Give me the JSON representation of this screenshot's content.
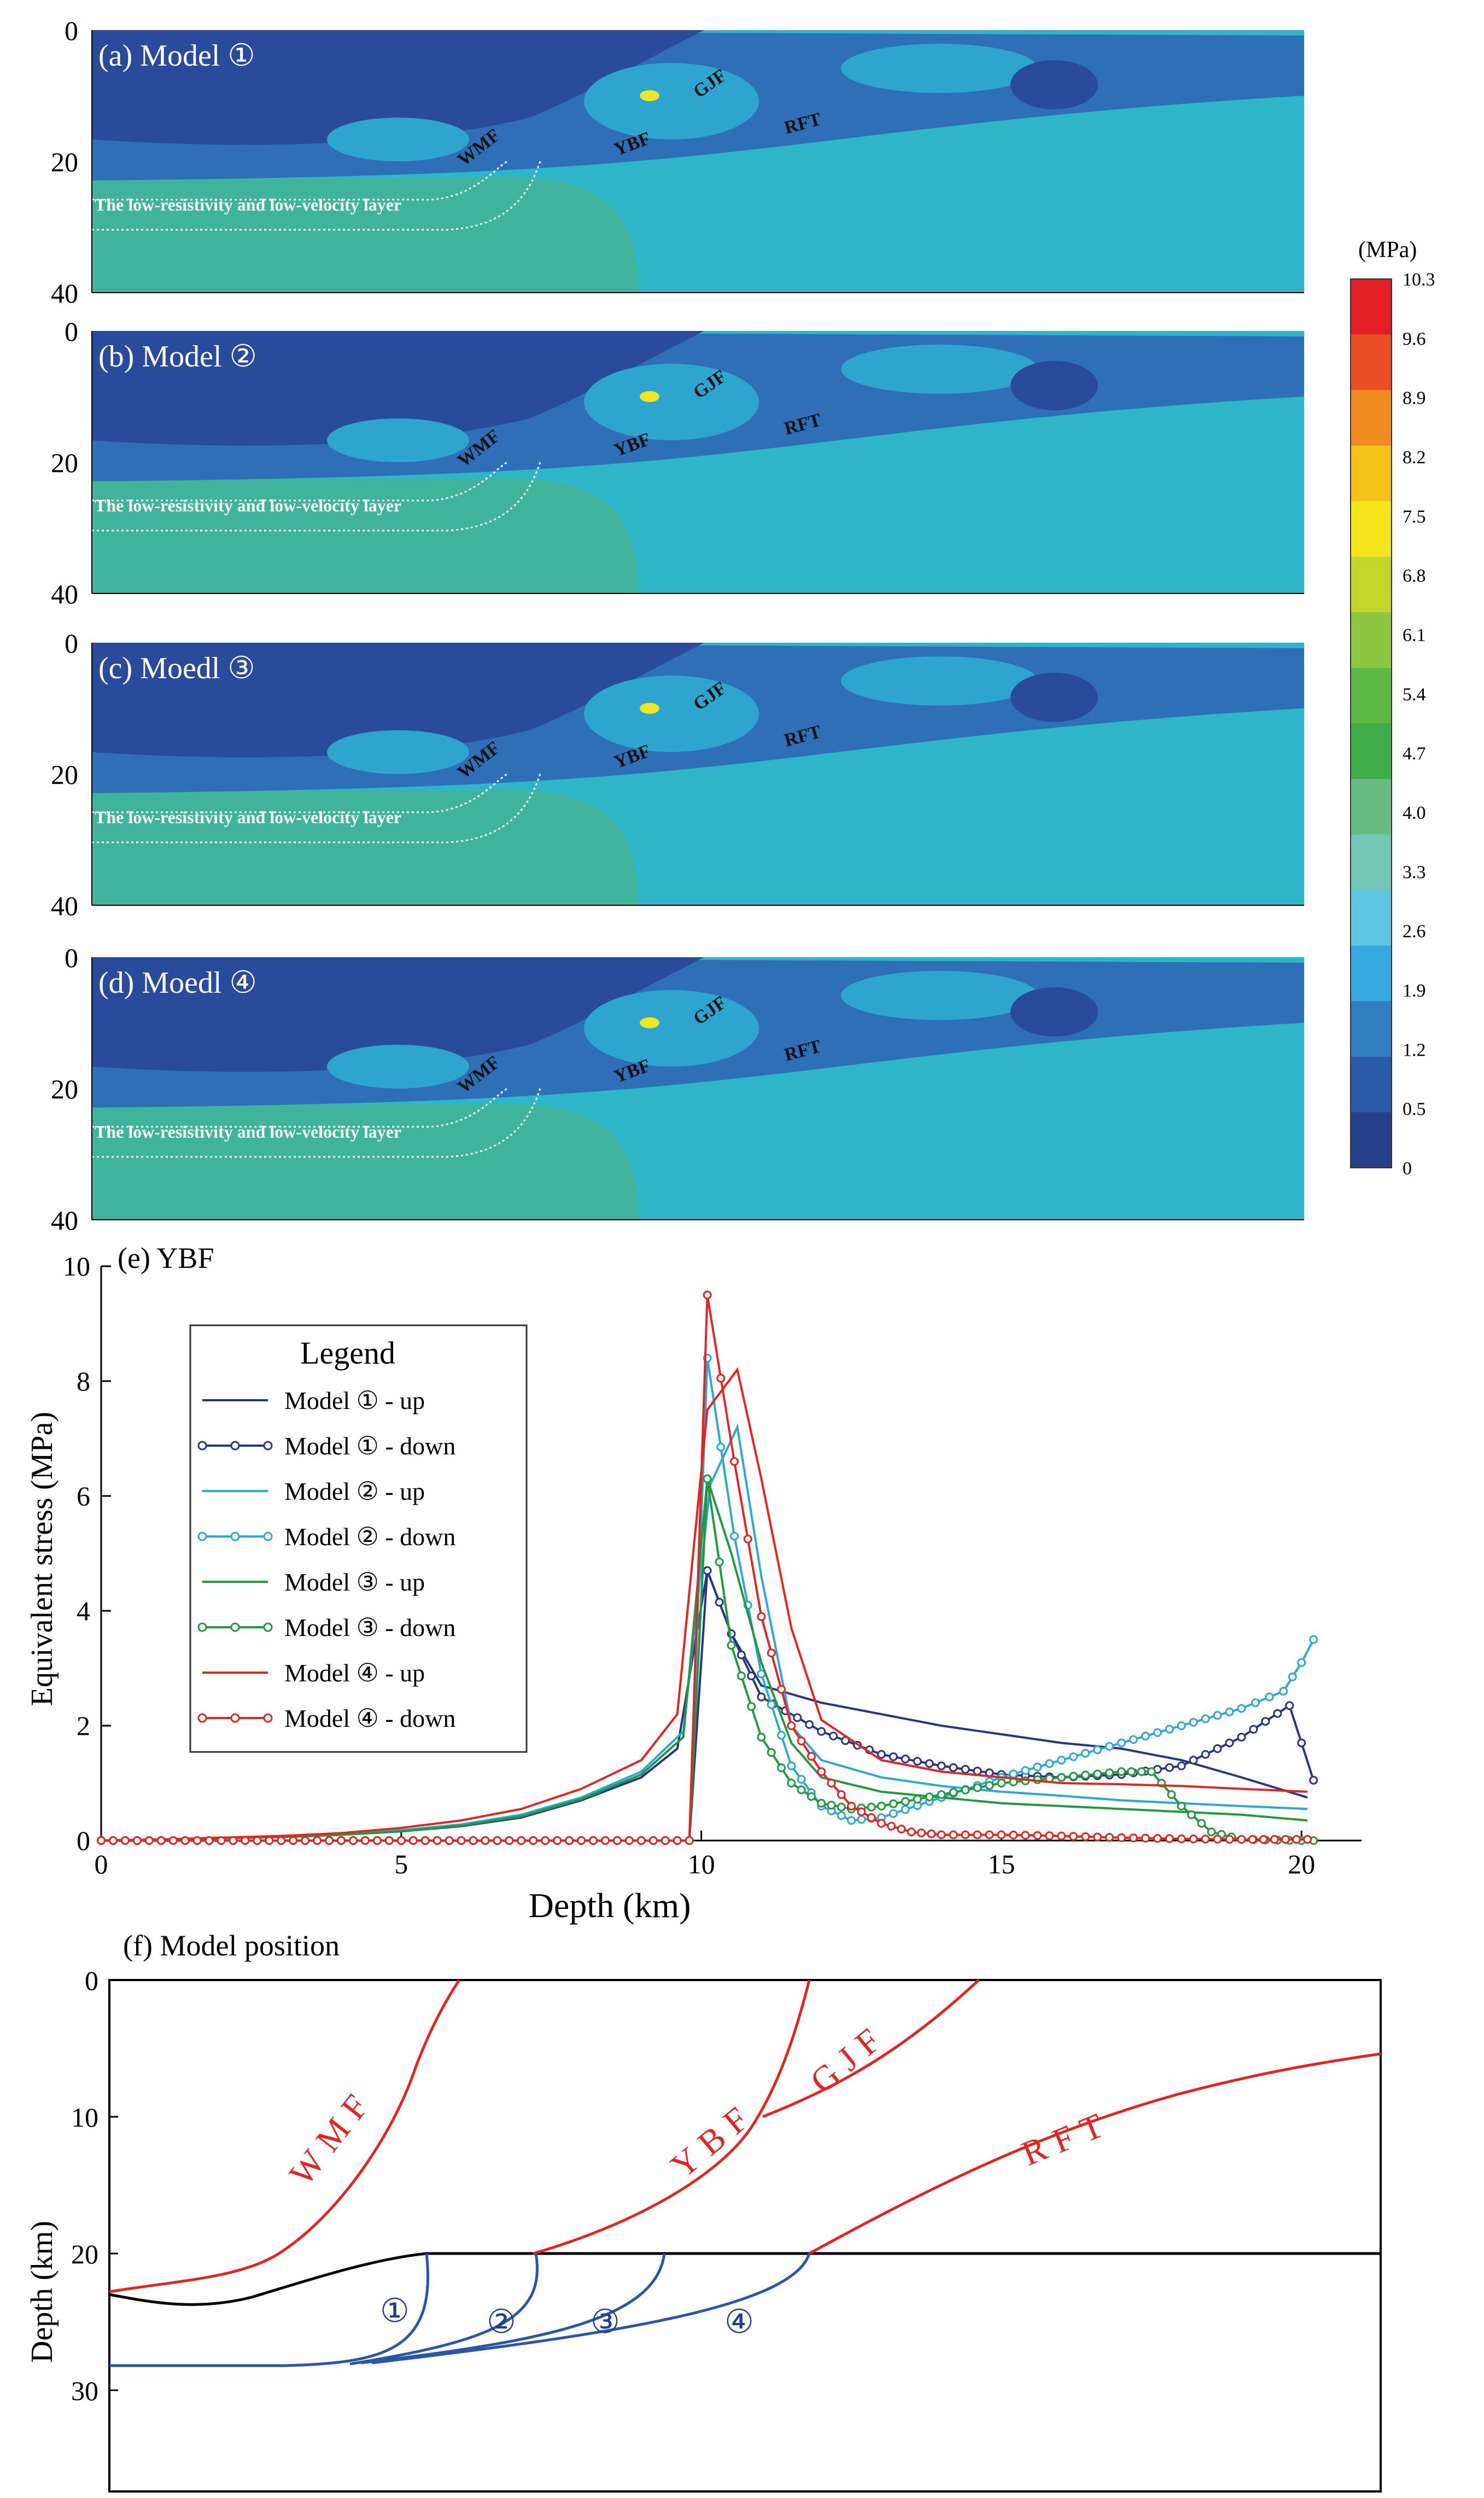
{
  "colors": {
    "dark_blue": "#2a4a9c",
    "mid_blue": "#2f6fb8",
    "light_blue": "#2ea5cf",
    "cyan": "#2fb5c8",
    "teal": "#3fb2a8",
    "green_teal": "#52b69a",
    "m1": "#27348b",
    "m2": "#2aa7de",
    "m3": "#1f9a3c",
    "m4": "#e52421",
    "red_line": "#e52421",
    "blue_line": "#2a55a8"
  },
  "panels": [
    {
      "label": "(a) Model ①",
      "fault_labels": {
        "wmf": "WMF",
        "ybf": "YBF",
        "gjf": "GJF",
        "rft": "RFT"
      },
      "layer_text": "The low-resistivity and low-velocity layer",
      "ticks": [
        "0",
        "20",
        "40"
      ]
    },
    {
      "label": "(b) Model ②",
      "fault_labels": {
        "wmf": "WMF",
        "ybf": "YBF",
        "gjf": "GJF",
        "rft": "RFT"
      },
      "layer_text": "The low-resistivity and low-velocity layer",
      "ticks": [
        "0",
        "20",
        "40"
      ]
    },
    {
      "label": "(c) Moedl ③",
      "fault_labels": {
        "wmf": "WMF",
        "ybf": "YBF",
        "gjf": "GJF",
        "rft": "RFT"
      },
      "layer_text": "The low-resistivity and low-velocity layer",
      "ticks": [
        "0",
        "20",
        "40"
      ]
    },
    {
      "label": "(d) Moedl ④",
      "fault_labels": {
        "wmf": "WMF",
        "ybf": "YBF",
        "gjf": "GJF",
        "rft": "RFT"
      },
      "layer_text": "The low-resistivity and low-velocity layer",
      "ticks": [
        "0",
        "20",
        "40"
      ]
    }
  ],
  "colorbar": {
    "unit": "(MPa)",
    "labels": [
      "10.3",
      "9.6",
      "8.9",
      "8.2",
      "7.5",
      "6.8",
      "6.1",
      "5.4",
      "4.7",
      "4.0",
      "3.3",
      "2.6",
      "1.9",
      "1.2",
      "0.5",
      "0"
    ],
    "colors": [
      "#e41e26",
      "#e94e24",
      "#f28a22",
      "#f5c21b",
      "#f4e51d",
      "#c6d52a",
      "#8dc63f",
      "#5db845",
      "#3fae49",
      "#68bb82",
      "#72c7b5",
      "#5ec6e1",
      "#36a9e1",
      "#2f7fc1",
      "#2a5aa8",
      "#27408b"
    ]
  },
  "chart_data": {
    "type": "line",
    "title": "(e) YBF",
    "xlabel": "Depth (km)",
    "ylabel": "Equivalent stress (MPa)",
    "xlim": [
      0,
      21
    ],
    "ylim": [
      0,
      10
    ],
    "xticks": [
      "0",
      "5",
      "10",
      "15",
      "20"
    ],
    "yticks": [
      "0",
      "2",
      "4",
      "6",
      "8",
      "10"
    ],
    "legend": {
      "title": "Legend",
      "location": "upper-left"
    },
    "series": [
      {
        "name": "Model ① - up",
        "color": "#27348b",
        "marker": false,
        "x": [
          0,
          1,
          2,
          3,
          4,
          5,
          6,
          7,
          8,
          9,
          9.6,
          10.1,
          10.5,
          11,
          12,
          13,
          14,
          15,
          16,
          17,
          18,
          19,
          20.1
        ],
        "y": [
          0,
          0.02,
          0.04,
          0.06,
          0.1,
          0.16,
          0.25,
          0.4,
          0.7,
          1.1,
          1.6,
          4.7,
          3.6,
          2.7,
          2.4,
          2.2,
          2.0,
          1.85,
          1.7,
          1.6,
          1.4,
          1.1,
          0.75
        ]
      },
      {
        "name": "Model ① - down",
        "color": "#27348b",
        "marker": true,
        "x": [
          0,
          1,
          2,
          3,
          4,
          5,
          6,
          7,
          8,
          9,
          9.8,
          10.1,
          10.5,
          11,
          12,
          13,
          14,
          15,
          16,
          17,
          18,
          19,
          19.8,
          20,
          20.2
        ],
        "y": [
          0,
          0,
          0,
          0,
          0,
          0,
          0,
          0,
          0,
          0,
          0,
          4.7,
          3.6,
          2.5,
          1.9,
          1.5,
          1.3,
          1.15,
          1.1,
          1.15,
          1.3,
          1.8,
          2.35,
          1.7,
          1.05
        ]
      },
      {
        "name": "Model ② - up",
        "color": "#2aa7de",
        "marker": false,
        "x": [
          0,
          1,
          2,
          3,
          4,
          5,
          6,
          7,
          8,
          9,
          9.7,
          10.15,
          10.6,
          11,
          11.5,
          12,
          13,
          14,
          15,
          16,
          17,
          18,
          19,
          20.1
        ],
        "y": [
          0,
          0.02,
          0.04,
          0.06,
          0.1,
          0.18,
          0.28,
          0.45,
          0.75,
          1.2,
          1.9,
          6.2,
          7.2,
          4.6,
          2.0,
          1.4,
          1.1,
          0.95,
          0.85,
          0.78,
          0.7,
          0.65,
          0.6,
          0.55
        ]
      },
      {
        "name": "Model ② - down",
        "color": "#2aa7de",
        "marker": true,
        "x": [
          0,
          1,
          2,
          3,
          4,
          5,
          6,
          7,
          8,
          9,
          9.8,
          10.1,
          10.55,
          11,
          11.5,
          12,
          12.5,
          13,
          14,
          15,
          16,
          17,
          18,
          19,
          19.7,
          20,
          20.2
        ],
        "y": [
          0,
          0,
          0,
          0,
          0,
          0,
          0,
          0,
          0,
          0,
          0,
          8.4,
          5.3,
          2.9,
          1.3,
          0.6,
          0.35,
          0.4,
          0.75,
          1.1,
          1.4,
          1.7,
          2.0,
          2.3,
          2.6,
          3.1,
          3.5
        ]
      },
      {
        "name": "Model ③ - up",
        "color": "#1f9a3c",
        "marker": false,
        "x": [
          0,
          1,
          2,
          3,
          4,
          5,
          6,
          7,
          8,
          9,
          9.7,
          10.1,
          10.5,
          11,
          11.5,
          12,
          13,
          14,
          15,
          16,
          17,
          18,
          19,
          20.1
        ],
        "y": [
          0,
          0.02,
          0.04,
          0.06,
          0.1,
          0.16,
          0.26,
          0.42,
          0.72,
          1.15,
          1.8,
          6.3,
          5.0,
          3.1,
          1.7,
          1.1,
          0.85,
          0.75,
          0.65,
          0.6,
          0.55,
          0.5,
          0.45,
          0.35
        ]
      },
      {
        "name": "Model ③ - down",
        "color": "#1f9a3c",
        "marker": true,
        "x": [
          0,
          1,
          2,
          3,
          4,
          5,
          6,
          7,
          8,
          9,
          9.8,
          10.1,
          10.5,
          11,
          11.5,
          12,
          12.5,
          13,
          14,
          15,
          16,
          17,
          17.5,
          18,
          18.5,
          19,
          20,
          20.2
        ],
        "y": [
          0,
          0,
          0,
          0,
          0,
          0,
          0,
          0,
          0,
          0,
          0,
          6.3,
          3.4,
          1.8,
          1.0,
          0.65,
          0.55,
          0.6,
          0.8,
          1.0,
          1.1,
          1.2,
          1.2,
          0.6,
          0.15,
          0.02,
          0,
          0
        ]
      },
      {
        "name": "Model ④ - up",
        "color": "#e52421",
        "marker": false,
        "x": [
          0,
          1,
          2,
          3,
          4,
          5,
          6,
          7,
          8,
          9,
          9.6,
          10.1,
          10.6,
          11,
          11.5,
          12,
          13,
          14,
          15,
          16,
          17,
          18,
          19,
          20.1
        ],
        "y": [
          0,
          0.02,
          0.05,
          0.08,
          0.13,
          0.22,
          0.35,
          0.55,
          0.9,
          1.4,
          2.2,
          7.5,
          8.2,
          6.3,
          3.7,
          2.1,
          1.4,
          1.2,
          1.1,
          1.0,
          0.98,
          0.95,
          0.9,
          0.85
        ]
      },
      {
        "name": "Model ④ - down",
        "color": "#e52421",
        "marker": true,
        "x": [
          0,
          1,
          2,
          3,
          4,
          5,
          6,
          7,
          8,
          9,
          9.8,
          10.1,
          10.55,
          11,
          11.5,
          12,
          12.5,
          13,
          13.5,
          14,
          15,
          16,
          17,
          18,
          19,
          20.1
        ],
        "y": [
          0,
          0,
          0,
          0,
          0,
          0,
          0,
          0,
          0,
          0,
          0,
          9.5,
          6.6,
          3.9,
          2.0,
          1.2,
          0.6,
          0.3,
          0.15,
          0.1,
          0.1,
          0.08,
          0.05,
          0.03,
          0.02,
          0.02
        ]
      }
    ]
  },
  "position": {
    "title": "(f) Model position",
    "ylabel": "Depth (km)",
    "yticks": [
      "0",
      "10",
      "20",
      "30"
    ],
    "fault_labels": [
      "WMF",
      "YBF",
      "GJF",
      "RFT"
    ],
    "model_labels": [
      "①",
      "②",
      "③",
      "④"
    ]
  }
}
